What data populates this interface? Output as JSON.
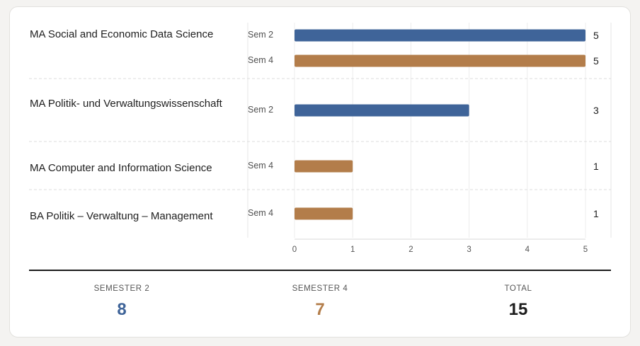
{
  "chart_data": {
    "type": "bar",
    "orientation": "horizontal",
    "xlim": [
      0,
      5
    ],
    "x_ticks": [
      "0",
      "1",
      "2",
      "3",
      "4",
      "5"
    ],
    "groups": [
      {
        "program": "MA Social and Economic Data Science",
        "bars": [
          {
            "semester": "Sem 2",
            "value": 5,
            "value_label": "5"
          },
          {
            "semester": "Sem 4",
            "value": 5,
            "value_label": "5"
          }
        ]
      },
      {
        "program": "MA Politik- und Verwaltungswissenschaft",
        "bars": [
          {
            "semester": "Sem 2",
            "value": 3,
            "value_label": "3"
          }
        ]
      },
      {
        "program": "MA Computer and Information Science",
        "bars": [
          {
            "semester": "Sem 4",
            "value": 1,
            "value_label": "1"
          }
        ]
      },
      {
        "program": "BA Politik – Verwaltung – Management",
        "bars": [
          {
            "semester": "Sem 4",
            "value": 1,
            "value_label": "1"
          }
        ]
      }
    ],
    "colors": {
      "Sem 2": "#3f6499",
      "Sem 4": "#b37d4a"
    }
  },
  "summary": {
    "semester2": {
      "label": "SEMESTER 2",
      "value": "8",
      "color": "#3f6499"
    },
    "semester4": {
      "label": "SEMESTER 4",
      "value": "7",
      "color": "#b37d4a"
    },
    "total": {
      "label": "TOTAL",
      "value": "15",
      "color": "#1e1e1e"
    }
  }
}
